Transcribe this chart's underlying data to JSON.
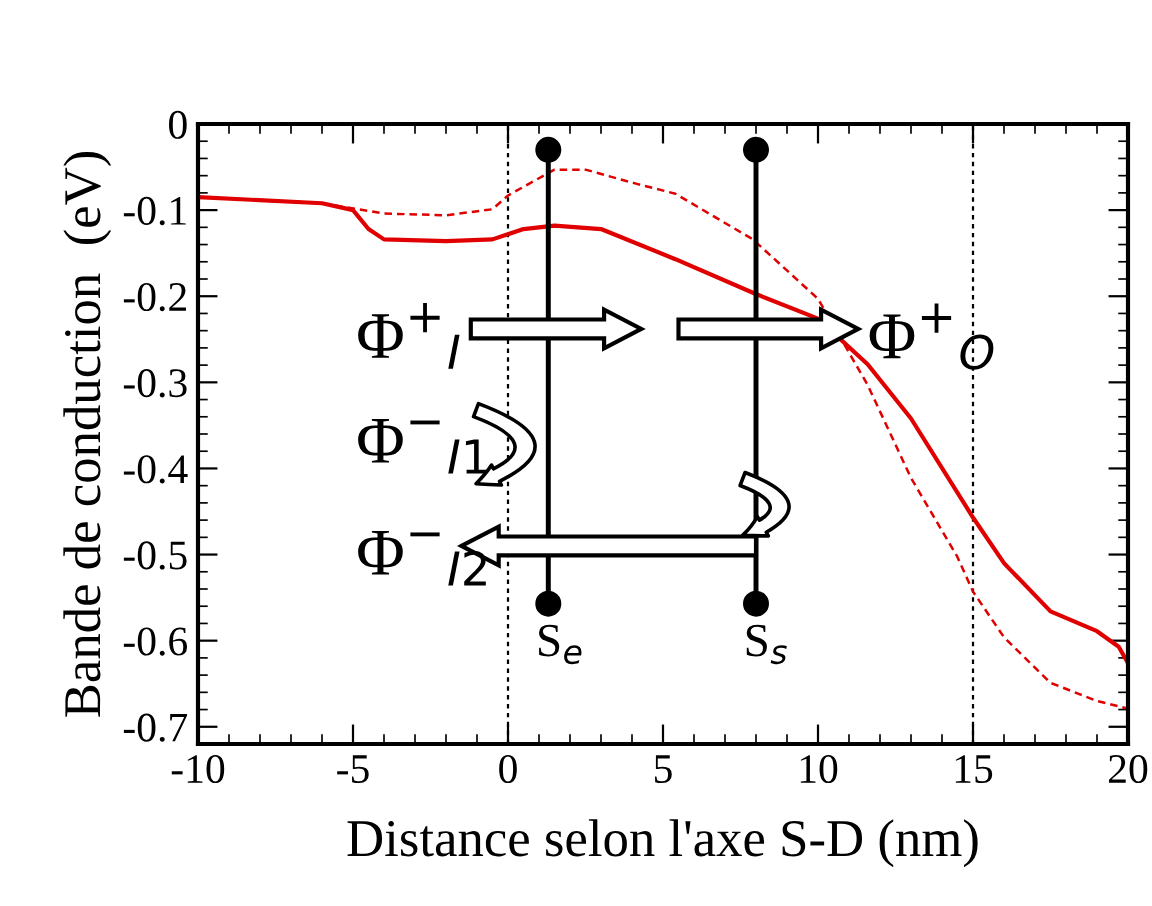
{
  "chart_data": {
    "type": "line",
    "xlabel": "Distance selon l'axe S-D (nm)",
    "ylabel": "Bande de conduction  (eV)",
    "xlim": [
      -10,
      20
    ],
    "xticks": [
      -10,
      -5,
      0,
      5,
      10,
      15,
      20
    ],
    "ylim": [
      -0.72,
      0
    ],
    "yticks": [
      0,
      -0.1,
      -0.2,
      -0.3,
      -0.4,
      -0.5,
      -0.6,
      -0.7
    ],
    "grid": false,
    "marker": "none",
    "series": [
      {
        "color": "#e00000",
        "line_style": "solid",
        "x": [
          -10,
          -6,
          -5,
          -4.5,
          -4,
          -2,
          -0.5,
          0.5,
          1.5,
          3,
          5.4,
          7.9,
          10,
          11.6,
          13,
          15,
          16,
          17.5,
          19,
          19.7,
          20
        ],
        "values": [
          -0.085,
          -0.092,
          -0.1,
          -0.122,
          -0.134,
          -0.136,
          -0.134,
          -0.122,
          -0.118,
          -0.122,
          -0.157,
          -0.196,
          -0.226,
          -0.279,
          -0.342,
          -0.457,
          -0.51,
          -0.566,
          -0.589,
          -0.607,
          -0.626
        ]
      },
      {
        "color": "#e00000",
        "line_style": "dashed",
        "x": [
          -10,
          -6,
          -4,
          -2,
          -0.5,
          0,
          1.5,
          2.5,
          4.1,
          5.4,
          7.9,
          10,
          11.6,
          13,
          14.5,
          15,
          16,
          17.5,
          19,
          20
        ],
        "values": [
          -0.085,
          -0.092,
          -0.104,
          -0.106,
          -0.099,
          -0.083,
          -0.053,
          -0.053,
          -0.069,
          -0.081,
          -0.134,
          -0.203,
          -0.303,
          -0.411,
          -0.503,
          -0.543,
          -0.596,
          -0.649,
          -0.67,
          -0.679
        ]
      }
    ],
    "ref_lines": [
      {
        "axis": "x",
        "value": 0,
        "color": "#000000",
        "line_style": "dotted"
      },
      {
        "axis": "x",
        "value": 15,
        "color": "#000000",
        "line_style": "dotted"
      }
    ],
    "annotations": [
      "Φ$^{+}$$_{I}$",
      "Φ$^{−}$$_{I1}$",
      "Φ$^{−}$$_{I2}$",
      "Φ$^{+}$$_{O}$",
      "S$_{e}$",
      "S$_{s}$"
    ]
  }
}
